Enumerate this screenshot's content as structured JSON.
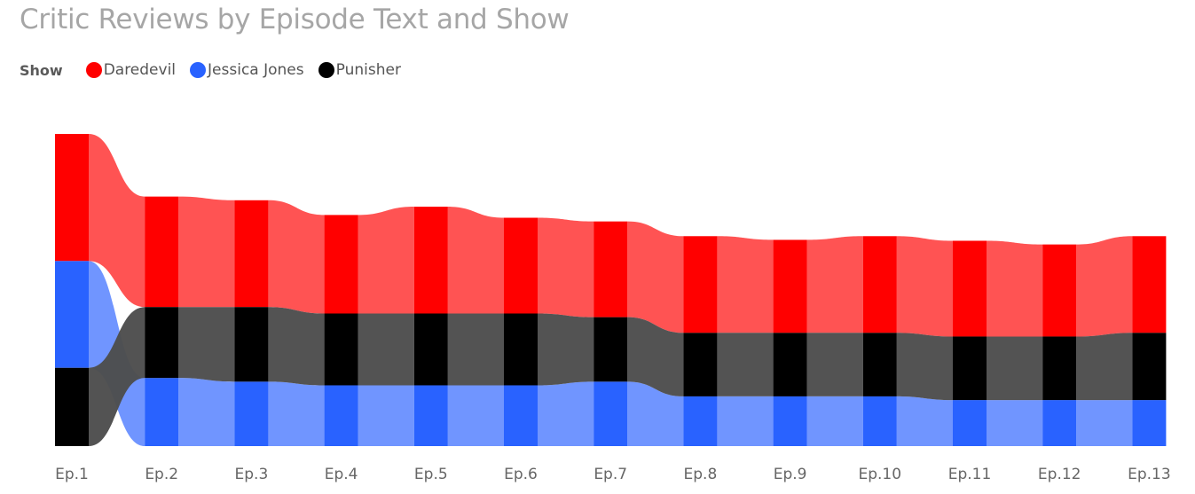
{
  "chart_data": {
    "type": "ribbon",
    "title": "Critic Reviews by Episode Text and Show",
    "legend_title": "Show",
    "categories": [
      "Ep.1",
      "Ep.2",
      "Ep.3",
      "Ep.4",
      "Ep.5",
      "Ep.6",
      "Ep.7",
      "Ep.8",
      "Ep.9",
      "Ep.10",
      "Ep.11",
      "Ep.12",
      "Ep.13"
    ],
    "series": [
      {
        "name": "Daredevil",
        "color": "#ff0000",
        "ribbon_color": "#ff4d4d",
        "values": [
          138,
          120,
          116,
          107,
          116,
          104,
          104,
          105,
          101,
          105,
          104,
          100,
          105
        ]
      },
      {
        "name": "Jessica Jones",
        "color": "#2962ff",
        "ribbon_color": "#6b92ff",
        "values": [
          116,
          74,
          70,
          66,
          66,
          66,
          70,
          54,
          54,
          54,
          50,
          50,
          50
        ]
      },
      {
        "name": "Punisher",
        "color": "#000000",
        "ribbon_color": "#4d4d4d",
        "values": [
          85,
          77,
          81,
          78,
          78,
          78,
          70,
          69,
          69,
          69,
          69,
          69,
          73
        ]
      }
    ],
    "stack_order_by_category": [
      [
        "Daredevil",
        "Jessica Jones",
        "Punisher"
      ],
      [
        "Daredevil",
        "Punisher",
        "Jessica Jones"
      ],
      [
        "Daredevil",
        "Punisher",
        "Jessica Jones"
      ],
      [
        "Daredevil",
        "Punisher",
        "Jessica Jones"
      ],
      [
        "Daredevil",
        "Punisher",
        "Jessica Jones"
      ],
      [
        "Daredevil",
        "Punisher",
        "Jessica Jones"
      ],
      [
        "Daredevil",
        "Punisher",
        "Jessica Jones"
      ],
      [
        "Daredevil",
        "Punisher",
        "Jessica Jones"
      ],
      [
        "Daredevil",
        "Punisher",
        "Jessica Jones"
      ],
      [
        "Daredevil",
        "Punisher",
        "Jessica Jones"
      ],
      [
        "Daredevil",
        "Punisher",
        "Jessica Jones"
      ],
      [
        "Daredevil",
        "Punisher",
        "Jessica Jones"
      ],
      [
        "Daredevil",
        "Punisher",
        "Jessica Jones"
      ]
    ],
    "legend_position": "top-left",
    "grid": false,
    "ylim": [
      0,
      340
    ]
  }
}
